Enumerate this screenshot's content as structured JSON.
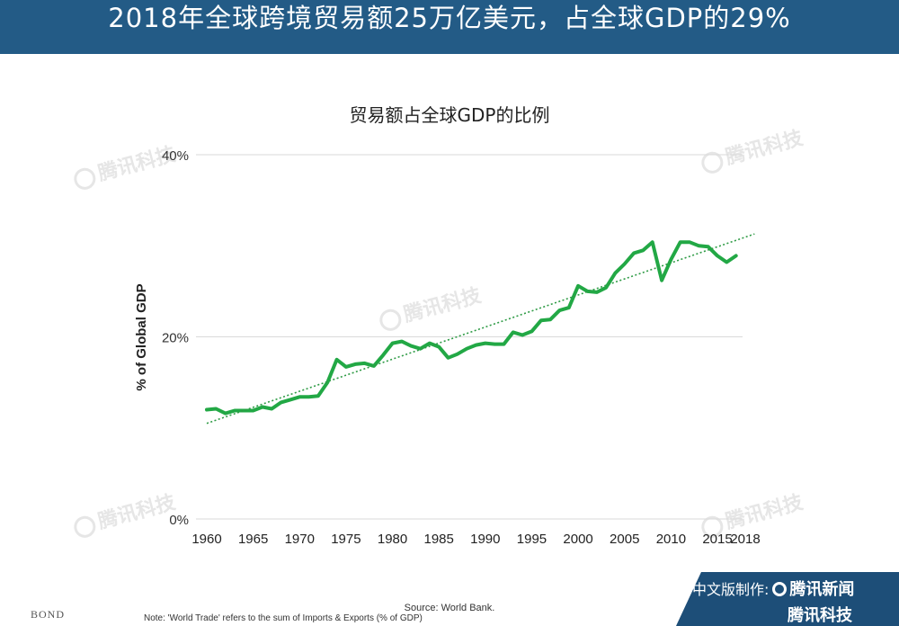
{
  "header": {
    "title": "2018年全球跨境贸易额25万亿美元，占全球GDP的29%"
  },
  "watermark": {
    "text": "腾讯科技"
  },
  "footer": {
    "source": "Source: World Bank.",
    "note": "Note: 'World Trade' refers to the sum of Imports & Exports (% of GDP)",
    "bond_logo": "BOND",
    "credit_label": "中文版制作:",
    "credit_brand": "腾讯新闻",
    "credit_brand2": "腾讯科技"
  },
  "colors": {
    "header_bg": "#235b86",
    "line": "#22a845",
    "trend": "#2e9b45",
    "grid": "#d9d9d9"
  },
  "chart_data": {
    "type": "line",
    "title": "贸易额占全球GDP的比例",
    "xlabel": "",
    "ylabel": "% of Global GDP",
    "xlim": [
      1960,
      2018
    ],
    "ylim": [
      0,
      40
    ],
    "x_ticks": [
      "1960",
      "1965",
      "1970",
      "1975",
      "1980",
      "1985",
      "1990",
      "1995",
      "2000",
      "2005",
      "2010",
      "2015",
      "2018"
    ],
    "y_ticks": [
      {
        "value": 0,
        "label": "0%"
      },
      {
        "value": 20,
        "label": "20%"
      },
      {
        "value": 40,
        "label": "40%"
      }
    ],
    "grid": true,
    "series": [
      {
        "type": "line",
        "x": [
          1960,
          1961,
          1962,
          1963,
          1964,
          1965,
          1966,
          1967,
          1968,
          1969,
          1970,
          1971,
          1972,
          1973,
          1974,
          1975,
          1976,
          1977,
          1978,
          1979,
          1980,
          1981,
          1982,
          1983,
          1984,
          1985,
          1986,
          1987,
          1988,
          1989,
          1990,
          1991,
          1992,
          1993,
          1994,
          1995,
          1996,
          1997,
          1998,
          1999,
          2000,
          2001,
          2002,
          2003,
          2004,
          2005,
          2006,
          2007,
          2008,
          2009,
          2010,
          2011,
          2012,
          2013,
          2014,
          2015,
          2016,
          2017
        ],
        "y": [
          12.0,
          12.1,
          11.6,
          11.9,
          11.9,
          11.9,
          12.3,
          12.1,
          12.8,
          13.1,
          13.4,
          13.4,
          13.5,
          15.0,
          17.5,
          16.7,
          17.0,
          17.1,
          16.8,
          18.0,
          19.3,
          19.5,
          19.0,
          18.7,
          19.3,
          18.9,
          17.7,
          18.1,
          18.7,
          19.1,
          19.3,
          19.2,
          19.2,
          20.5,
          20.2,
          20.6,
          21.8,
          21.9,
          22.9,
          23.2,
          25.6,
          25.0,
          24.9,
          25.4,
          27.0,
          28.0,
          29.2,
          29.5,
          30.4,
          26.2,
          28.5,
          30.4,
          30.4,
          30.0,
          29.9,
          28.9,
          28.2,
          28.9
        ]
      },
      {
        "type": "trendline",
        "x": [
          1960,
          2019
        ],
        "y": [
          10.5,
          31.3
        ]
      }
    ]
  }
}
